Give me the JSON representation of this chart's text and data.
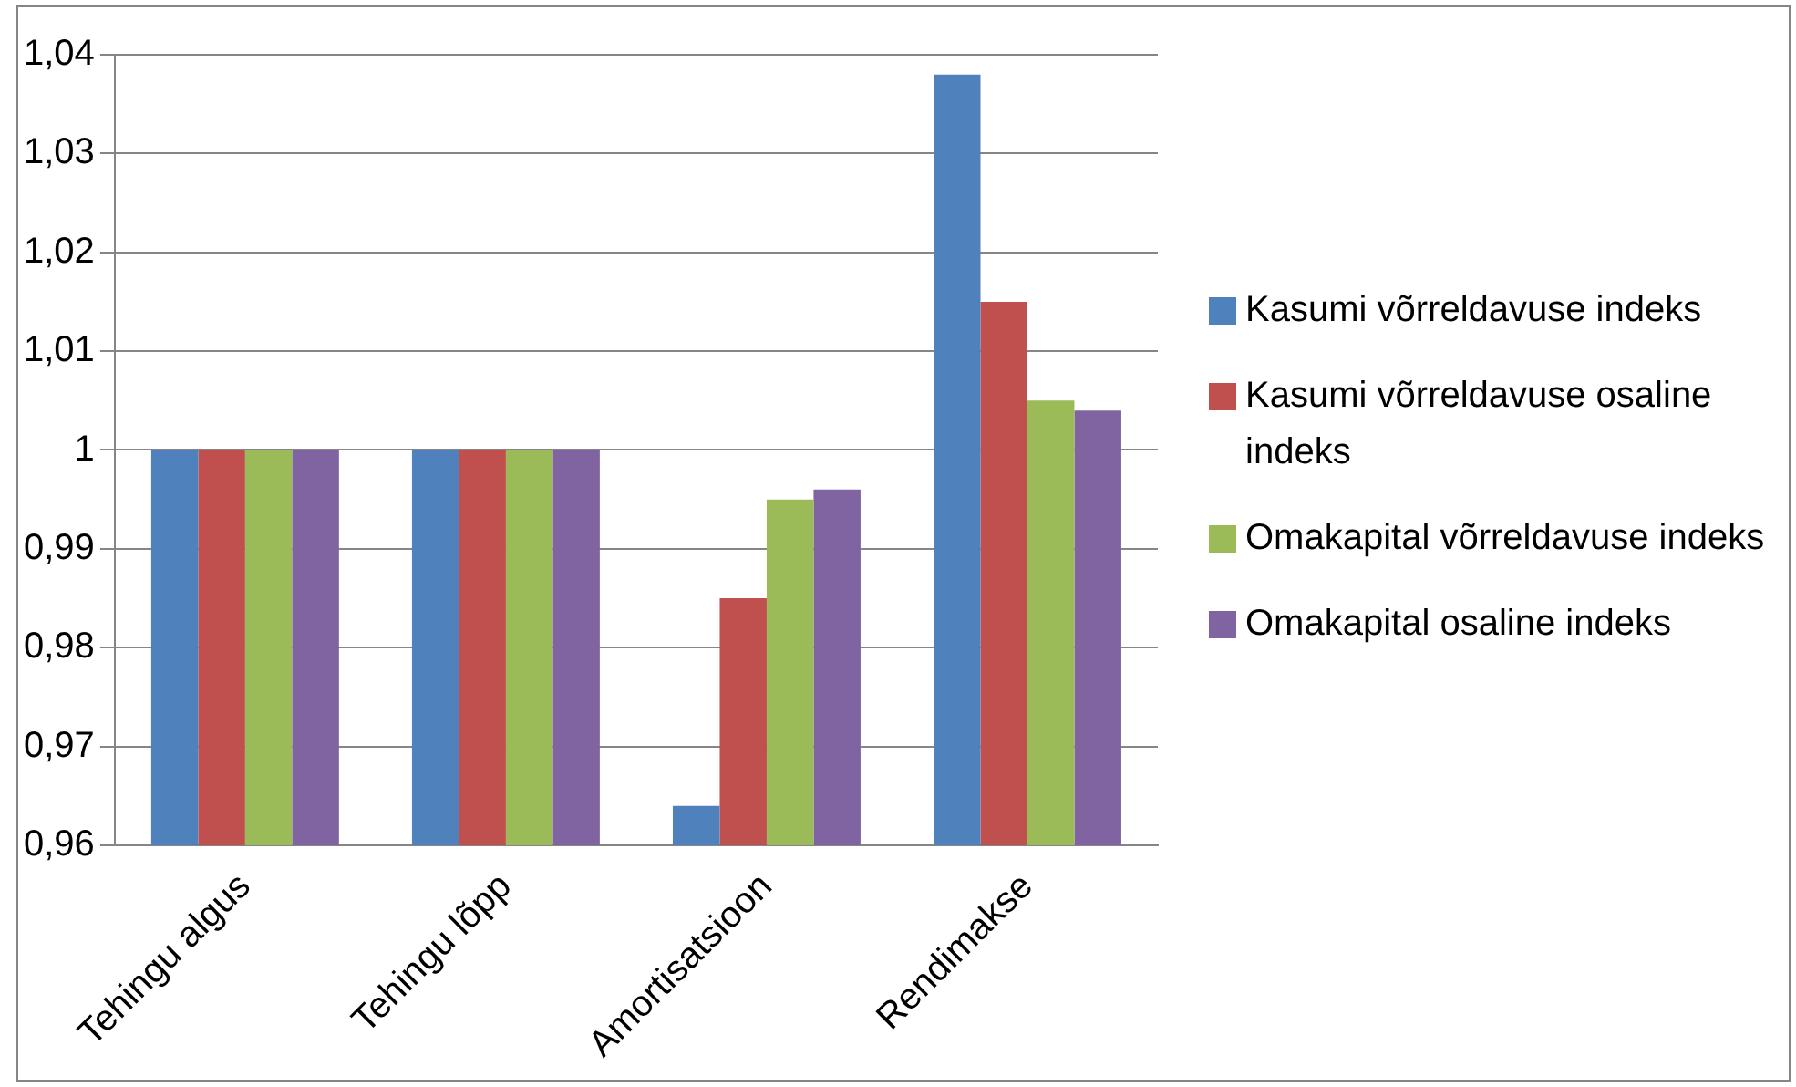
{
  "chart_data": {
    "type": "bar",
    "categories": [
      "Tehingu algus",
      "Tehingu lõpp",
      "Amortisatsioon",
      "Rendimakse"
    ],
    "series": [
      {
        "name": "Kasumi võrreldavuse indeks",
        "color": "#4f81bd",
        "values": [
          1,
          1,
          0.964,
          1.038
        ]
      },
      {
        "name": "Kasumi võrreldavuse osaline indeks",
        "color": "#c0504d",
        "values": [
          1,
          1,
          0.985,
          1.015
        ]
      },
      {
        "name": "Omakapital võrreldavuse indeks",
        "color": "#9bbb59",
        "values": [
          1,
          1,
          0.995,
          1.005
        ]
      },
      {
        "name": "Omakapital osaline indeks",
        "color": "#8064a2",
        "values": [
          1,
          1,
          0.996,
          1.004
        ]
      }
    ],
    "ylim": [
      0.96,
      1.04
    ],
    "yticks": [
      {
        "value": 0.96,
        "label": "0,96"
      },
      {
        "value": 0.97,
        "label": "0,97"
      },
      {
        "value": 0.98,
        "label": "0,98"
      },
      {
        "value": 0.99,
        "label": "0,99"
      },
      {
        "value": 1,
        "label": "1"
      },
      {
        "value": 1.01,
        "label": "1,01"
      },
      {
        "value": 1.02,
        "label": "1,02"
      },
      {
        "value": 1.03,
        "label": "1,03"
      },
      {
        "value": 1.04,
        "label": "1,04"
      }
    ],
    "grid": "y",
    "legend": "right"
  }
}
